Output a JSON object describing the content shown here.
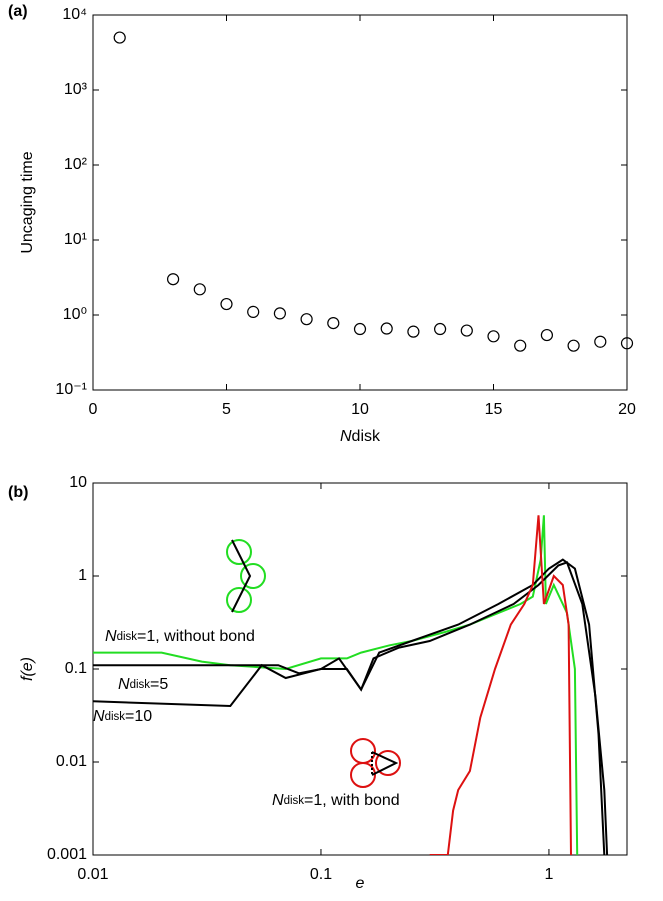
{
  "chart_data": [
    {
      "type": "scatter",
      "panel_label": "(a)",
      "xlabel": "Ndisk",
      "ylabel": "Uncaging time",
      "x": [
        1,
        3,
        4,
        5,
        6,
        7,
        8,
        9,
        10,
        11,
        12,
        13,
        14,
        15,
        16,
        17,
        18,
        19,
        20
      ],
      "values": [
        5000,
        3.0,
        2.2,
        1.4,
        1.1,
        1.05,
        0.88,
        0.78,
        0.65,
        0.66,
        0.6,
        0.65,
        0.62,
        0.52,
        0.39,
        0.54,
        0.39,
        0.44,
        0.42
      ],
      "marker": "open-circle",
      "color": "#000000",
      "ylog": true,
      "xlim": [
        0,
        20
      ],
      "xticks": [
        0,
        5,
        10,
        15,
        20
      ],
      "ylim": [
        0.1,
        10000
      ],
      "yticks": [
        {
          "value": 0.1,
          "label": "10⁻¹"
        },
        {
          "value": 1,
          "label": "10⁰"
        },
        {
          "value": 10,
          "label": "10¹"
        },
        {
          "value": 100,
          "label": "10²"
        },
        {
          "value": 1000,
          "label": "10³"
        },
        {
          "value": 10000,
          "label": "10⁴"
        }
      ]
    },
    {
      "type": "line",
      "panel_label": "(b)",
      "xlabel": "e",
      "ylabel": "f(e)",
      "xlog": true,
      "ylog": true,
      "xlim": [
        0.01,
        2.2
      ],
      "xticks": [
        0.01,
        0.1,
        1
      ],
      "ylim": [
        0.001,
        10
      ],
      "yticks": [
        0.001,
        0.01,
        0.1,
        1,
        10
      ],
      "series": [
        {
          "name": "Ndisk=1, without bond",
          "color": "#22dd22",
          "x": [
            0.01,
            0.02,
            0.03,
            0.04,
            0.07,
            0.1,
            0.13,
            0.15,
            0.2,
            0.25,
            0.35,
            0.45,
            0.6,
            0.75,
            0.85,
            0.92,
            0.95,
            0.97,
            1.05,
            1.2,
            1.3,
            1.33
          ],
          "values": [
            0.15,
            0.15,
            0.12,
            0.11,
            0.1,
            0.13,
            0.13,
            0.15,
            0.18,
            0.2,
            0.25,
            0.3,
            0.4,
            0.5,
            0.6,
            1.5,
            4.5,
            0.5,
            0.8,
            0.4,
            0.1,
            0.001
          ]
        },
        {
          "name": "Ndisk=5",
          "color": "#000000",
          "x": [
            0.01,
            0.04,
            0.065,
            0.08,
            0.1,
            0.13,
            0.15,
            0.17,
            0.22,
            0.3,
            0.45,
            0.7,
            0.9,
            1.1,
            1.2,
            1.4,
            1.6,
            1.75,
            1.8
          ],
          "values": [
            0.11,
            0.11,
            0.11,
            0.09,
            0.1,
            0.1,
            0.06,
            0.13,
            0.17,
            0.2,
            0.3,
            0.5,
            0.8,
            1.3,
            1.4,
            0.5,
            0.05,
            0.005,
            0.001
          ]
        },
        {
          "name": "Ndisk=10",
          "color": "#000000",
          "x": [
            0.01,
            0.04,
            0.055,
            0.07,
            0.1,
            0.12,
            0.15,
            0.18,
            0.25,
            0.4,
            0.6,
            0.85,
            1.0,
            1.15,
            1.3,
            1.5,
            1.65,
            1.75
          ],
          "values": [
            0.045,
            0.04,
            0.11,
            0.08,
            0.1,
            0.13,
            0.06,
            0.15,
            0.2,
            0.3,
            0.5,
            0.8,
            1.2,
            1.5,
            1.2,
            0.3,
            0.02,
            0.001
          ]
        },
        {
          "name": "Ndisk=1, with bond",
          "color": "#dd1111",
          "x": [
            0.3,
            0.36,
            0.38,
            0.4,
            0.45,
            0.5,
            0.58,
            0.68,
            0.78,
            0.85,
            0.9,
            0.95,
            1.05,
            1.15,
            1.22,
            1.25
          ],
          "values": [
            0.001,
            0.001,
            0.003,
            0.005,
            0.008,
            0.03,
            0.1,
            0.3,
            0.5,
            0.8,
            4.5,
            0.5,
            1.0,
            0.8,
            0.3,
            0.001
          ]
        }
      ]
    }
  ]
}
